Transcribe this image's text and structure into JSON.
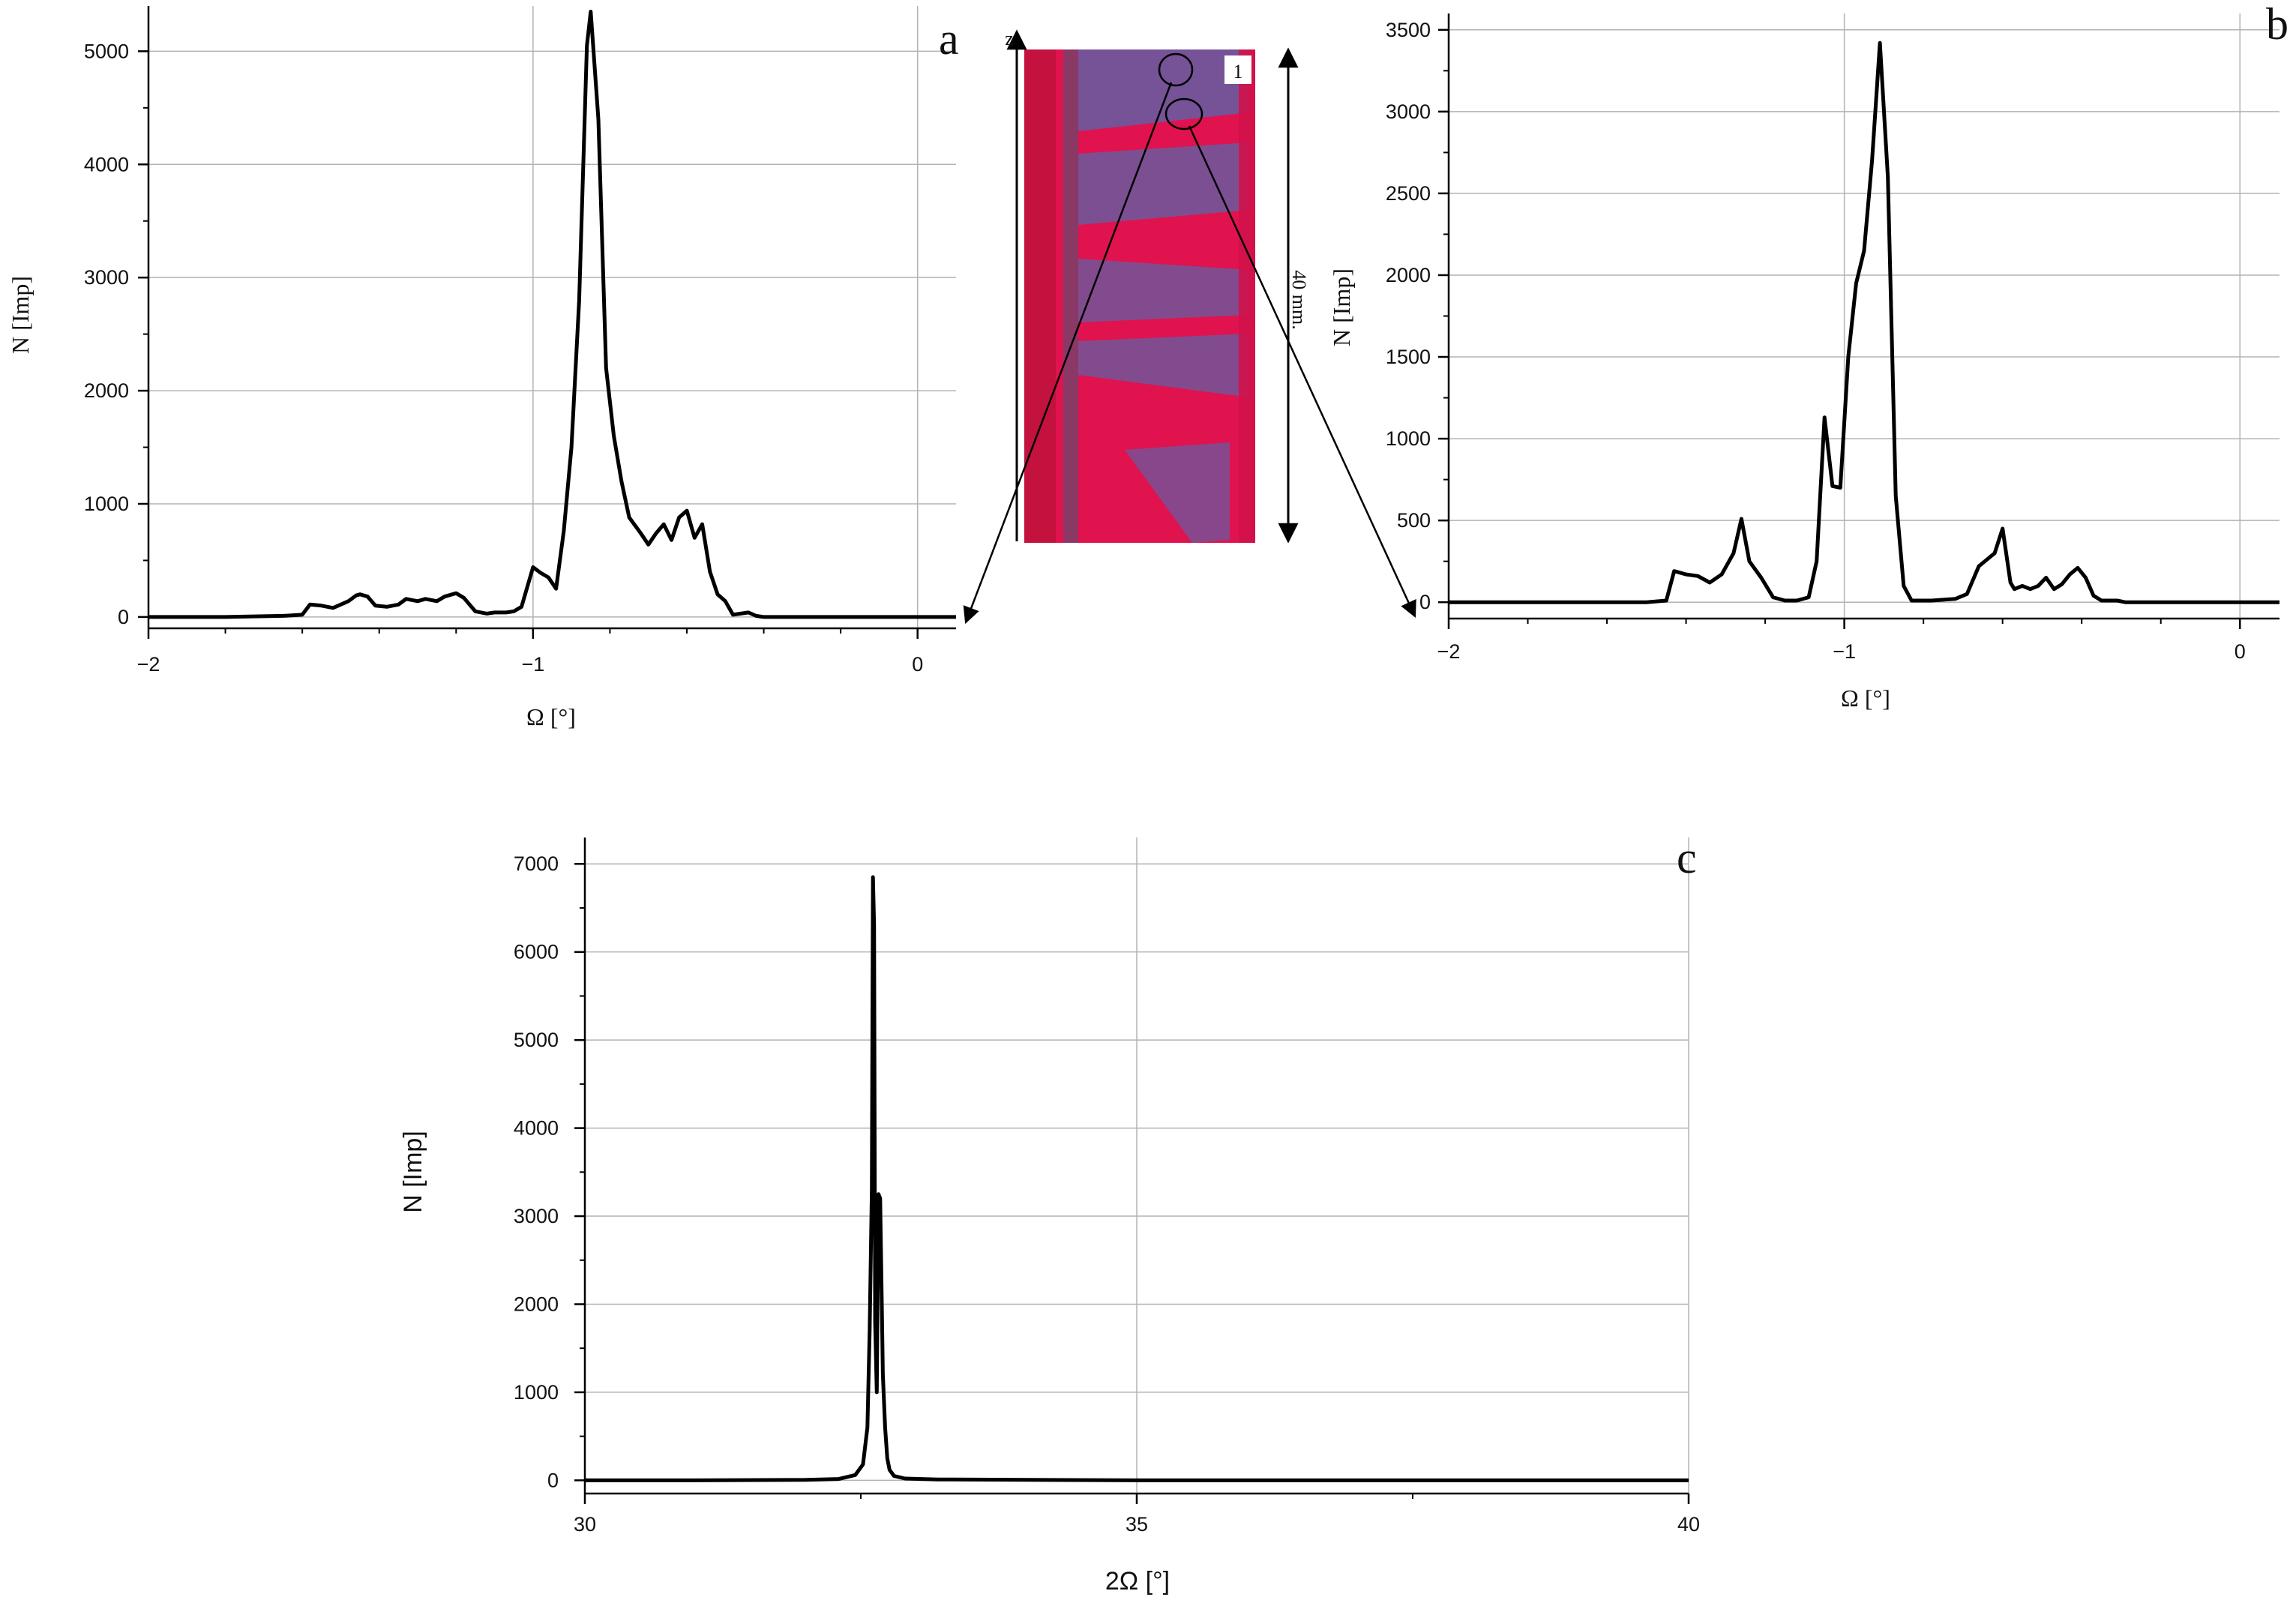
{
  "chart_data": [
    {
      "panel": "a",
      "type": "line",
      "xlabel": "Ω [°]",
      "ylabel": "N [Imp]",
      "xlim": [
        -2,
        0.1
      ],
      "ylim": [
        -100,
        5400
      ],
      "xticks": [
        -2,
        -1,
        0
      ],
      "xtick_labels": [
        "−2",
        "−1",
        "0"
      ],
      "yticks": [
        0,
        1000,
        2000,
        3000,
        4000,
        5000
      ],
      "grid": true,
      "series": [
        {
          "x": [
            -2.0,
            -1.8,
            -1.65,
            -1.6,
            -1.58,
            -1.55,
            -1.52,
            -1.5,
            -1.48,
            -1.46,
            -1.45,
            -1.43,
            -1.41,
            -1.38,
            -1.35,
            -1.33,
            -1.3,
            -1.28,
            -1.25,
            -1.23,
            -1.2,
            -1.18,
            -1.15,
            -1.12,
            -1.1,
            -1.07,
            -1.05,
            -1.03,
            -1.0,
            -0.98,
            -0.96,
            -0.94,
            -0.92,
            -0.9,
            -0.88,
            -0.86,
            -0.85,
            -0.83,
            -0.81,
            -0.79,
            -0.77,
            -0.75,
            -0.72,
            -0.7,
            -0.68,
            -0.66,
            -0.64,
            -0.62,
            -0.6,
            -0.58,
            -0.56,
            -0.54,
            -0.52,
            -0.5,
            -0.48,
            -0.46,
            -0.44,
            -0.42,
            -0.4,
            -0.3,
            0.1
          ],
          "y": [
            0,
            0,
            10,
            20,
            110,
            100,
            80,
            110,
            140,
            190,
            200,
            180,
            100,
            90,
            110,
            160,
            140,
            160,
            140,
            180,
            210,
            170,
            50,
            30,
            40,
            40,
            50,
            90,
            440,
            390,
            350,
            250,
            760,
            1500,
            2800,
            5050,
            5350,
            4400,
            2200,
            1600,
            1200,
            880,
            740,
            640,
            740,
            820,
            680,
            880,
            940,
            700,
            820,
            400,
            200,
            140,
            20,
            30,
            40,
            10,
            0,
            0,
            0
          ]
        }
      ]
    },
    {
      "panel": "b",
      "type": "line",
      "xlabel": "Ω [°]",
      "ylabel": "N [Imp]",
      "xlim": [
        -2,
        0.1
      ],
      "ylim": [
        -100,
        3600
      ],
      "xticks": [
        -2,
        -1,
        0
      ],
      "xtick_labels": [
        "−2",
        "−1",
        "0"
      ],
      "yticks": [
        0,
        500,
        1000,
        1500,
        2000,
        2500,
        3000,
        3500
      ],
      "grid": true,
      "series": [
        {
          "x": [
            -2.0,
            -1.7,
            -1.5,
            -1.45,
            -1.43,
            -1.4,
            -1.37,
            -1.34,
            -1.31,
            -1.28,
            -1.26,
            -1.24,
            -1.21,
            -1.18,
            -1.15,
            -1.12,
            -1.09,
            -1.07,
            -1.05,
            -1.03,
            -1.01,
            -0.99,
            -0.97,
            -0.95,
            -0.93,
            -0.91,
            -0.89,
            -0.87,
            -0.85,
            -0.83,
            -0.81,
            -0.78,
            -0.72,
            -0.69,
            -0.66,
            -0.64,
            -0.62,
            -0.6,
            -0.58,
            -0.57,
            -0.55,
            -0.53,
            -0.51,
            -0.49,
            -0.47,
            -0.45,
            -0.43,
            -0.41,
            -0.39,
            -0.37,
            -0.35,
            -0.33,
            -0.31,
            -0.29,
            -0.25,
            0.1
          ],
          "y": [
            0,
            0,
            0,
            10,
            190,
            170,
            160,
            120,
            170,
            300,
            510,
            250,
            150,
            30,
            10,
            10,
            30,
            250,
            1130,
            710,
            700,
            1500,
            1950,
            2150,
            2700,
            3420,
            2600,
            650,
            100,
            10,
            10,
            10,
            20,
            50,
            220,
            260,
            300,
            450,
            120,
            80,
            100,
            80,
            100,
            150,
            80,
            110,
            170,
            210,
            150,
            40,
            10,
            10,
            10,
            0,
            0,
            0
          ]
        }
      ]
    },
    {
      "panel": "c",
      "type": "line",
      "xlabel": "2Ω  [°]",
      "ylabel": "N [Imp]",
      "xlim": [
        30,
        40
      ],
      "ylim": [
        -150,
        7300
      ],
      "xticks": [
        30,
        35,
        40
      ],
      "yticks": [
        0,
        1000,
        2000,
        3000,
        4000,
        5000,
        6000,
        7000
      ],
      "grid": true,
      "series": [
        {
          "x": [
            30.0,
            31.0,
            32.0,
            32.3,
            32.45,
            32.52,
            32.56,
            32.58,
            32.6,
            32.61,
            32.62,
            32.63,
            32.645,
            32.66,
            32.675,
            32.69,
            32.7,
            32.72,
            32.74,
            32.76,
            32.8,
            32.9,
            33.2,
            35.0,
            37.0,
            40.0
          ],
          "y": [
            0,
            0,
            5,
            15,
            60,
            180,
            600,
            1700,
            3300,
            6850,
            6300,
            1800,
            1000,
            3250,
            3200,
            2000,
            1200,
            600,
            250,
            120,
            50,
            20,
            10,
            0,
            0,
            0
          ]
        }
      ]
    }
  ],
  "photo": {
    "label": "1",
    "axis_label": "z",
    "length_label": "40 mm."
  },
  "colors": {
    "line": "#000000",
    "grid": "#b3b3b3",
    "photo_base": "#e0134f",
    "photo_band": "#6a5a9e"
  }
}
